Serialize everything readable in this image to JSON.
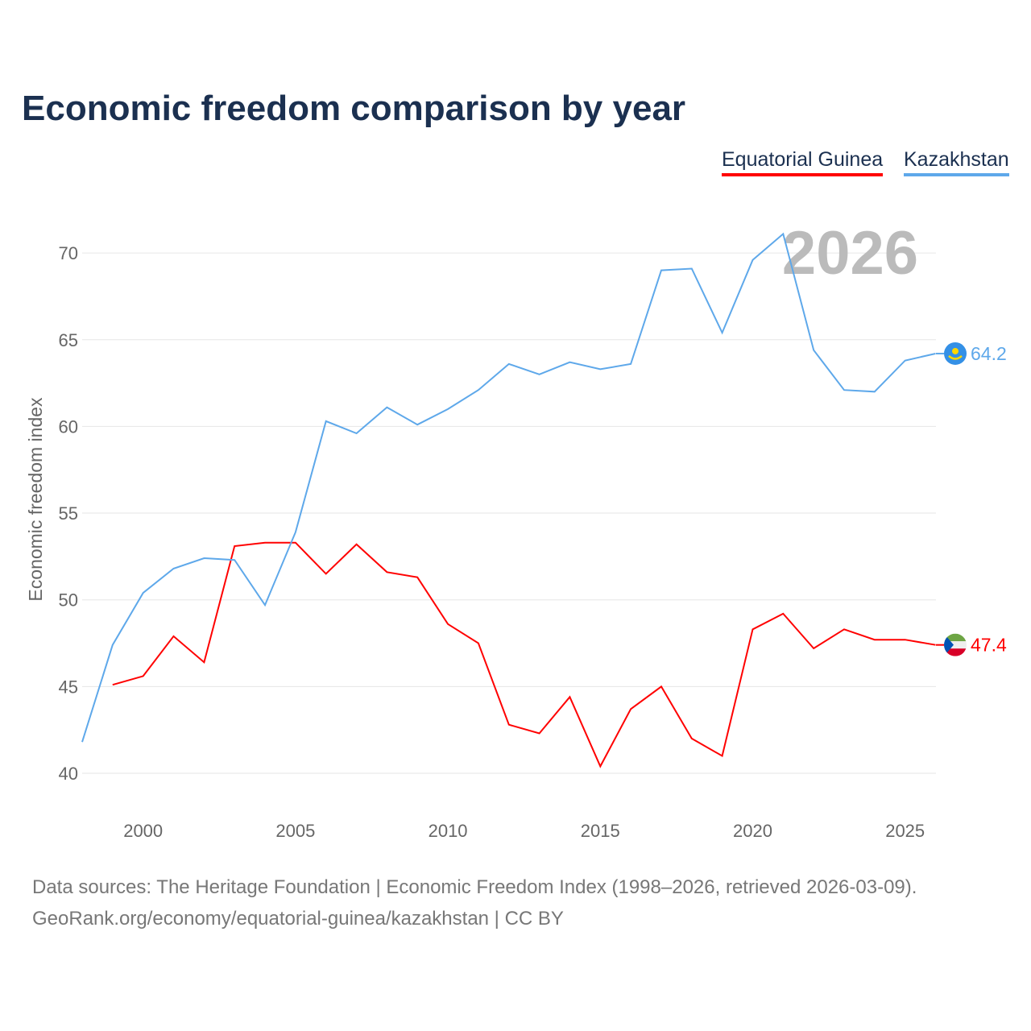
{
  "chart_data": {
    "type": "line",
    "title": "Economic freedom comparison by year",
    "ylabel": "Economic freedom index",
    "xlabel": "",
    "ylim": [
      40,
      72
    ],
    "xlim": [
      1998,
      2026
    ],
    "yticks": [
      40,
      45,
      50,
      55,
      60,
      65,
      70
    ],
    "xticks": [
      2000,
      2005,
      2010,
      2015,
      2020,
      2025
    ],
    "grid": true,
    "legend_position": "top-right",
    "year_watermark": "2026",
    "series": [
      {
        "name": "Equatorial Guinea",
        "color": "#ff0000",
        "end_label": "47.4",
        "x": [
          1999,
          2000,
          2001,
          2002,
          2003,
          2004,
          2005,
          2006,
          2007,
          2008,
          2009,
          2010,
          2011,
          2012,
          2013,
          2014,
          2015,
          2016,
          2017,
          2018,
          2019,
          2020,
          2021,
          2022,
          2023,
          2024,
          2025,
          2026
        ],
        "values": [
          45.1,
          45.6,
          47.9,
          46.4,
          53.1,
          53.3,
          53.3,
          51.5,
          53.2,
          51.6,
          51.3,
          48.6,
          47.5,
          42.8,
          42.3,
          44.4,
          40.4,
          43.7,
          45.0,
          42.0,
          41.0,
          48.3,
          49.2,
          47.2,
          48.3,
          47.7,
          47.7,
          47.4
        ]
      },
      {
        "name": "Kazakhstan",
        "color": "#5ea8ea",
        "end_label": "64.2",
        "x": [
          1998,
          1999,
          2000,
          2001,
          2002,
          2003,
          2004,
          2005,
          2006,
          2007,
          2008,
          2009,
          2010,
          2011,
          2012,
          2013,
          2014,
          2015,
          2016,
          2017,
          2018,
          2019,
          2020,
          2021,
          2022,
          2023,
          2024,
          2025,
          2026
        ],
        "values": [
          41.8,
          47.4,
          50.4,
          51.8,
          52.4,
          52.3,
          49.7,
          53.9,
          60.3,
          59.6,
          61.1,
          60.1,
          61.0,
          62.1,
          63.6,
          63.0,
          63.7,
          63.3,
          63.6,
          69.0,
          69.1,
          65.4,
          69.6,
          71.1,
          64.4,
          62.1,
          62.0,
          63.8,
          64.2
        ]
      }
    ]
  },
  "footer": {
    "line1": "Data sources: The Heritage Foundation | Economic Freedom Index (1998–2026, retrieved 2026-03-09).",
    "line2": "GeoRank.org/economy/equatorial-guinea/kazakhstan | CC BY"
  }
}
